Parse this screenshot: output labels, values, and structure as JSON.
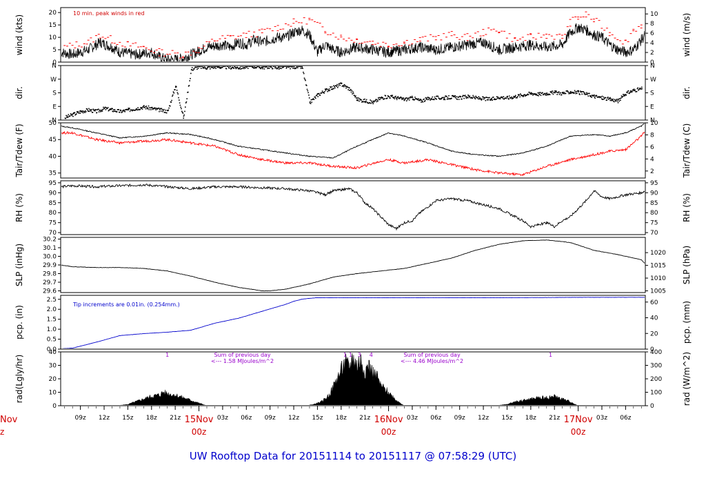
{
  "title": "UW Rooftop Data for 20151114  to  20151117 @ 07:58:29  (UTC)",
  "colors": {
    "data": "#000000",
    "peak": "#ff0000",
    "precip": "#0000cc",
    "purple": "#9900cc",
    "day_label": "#d00000"
  },
  "time_axis": {
    "tick_labels": [
      "09z",
      "12z",
      "15z",
      "18z",
      "21z",
      "03z",
      "06z",
      "09z",
      "12z",
      "15z",
      "18z",
      "21z",
      "03z",
      "06z",
      "09z",
      "12z",
      "15z",
      "18z",
      "21z",
      "03z",
      "06z"
    ],
    "tick_hours": [
      1,
      4,
      7,
      10,
      13,
      19,
      22,
      25,
      28,
      31,
      34,
      37,
      43,
      46,
      49,
      52,
      55,
      58,
      61,
      67,
      70
    ],
    "day_labels": [
      {
        "date": "15Nov",
        "hour": "00z",
        "at": 16
      },
      {
        "date": "16Nov",
        "hour": "00z",
        "at": 40
      },
      {
        "date": "17Nov",
        "hour": "00z",
        "at": 64
      }
    ],
    "edge_day": {
      "date": "Nov",
      "hour": "z"
    },
    "range_hours": [
      -1.5,
      72.5
    ]
  },
  "chart_data": [
    {
      "type": "line",
      "panel": "wind",
      "ylabel": "wind (kts)",
      "ylabel_right": "wind (m/s)",
      "ylim": [
        0,
        22
      ],
      "yticks": [
        0,
        5,
        10,
        15,
        20
      ],
      "yticks_right": [
        0,
        2,
        4,
        6,
        8,
        10
      ],
      "annotation": "10 min. peak winds in red",
      "series": [
        {
          "x": [
            -1.5,
            0,
            2,
            3.5,
            5,
            6,
            8,
            10,
            11,
            12,
            13,
            14,
            15,
            17,
            19,
            20,
            21,
            22,
            23,
            24,
            25,
            26,
            27,
            28,
            29,
            30,
            31,
            32,
            33,
            34,
            35,
            36,
            38,
            40,
            42,
            44,
            46,
            48,
            50,
            52,
            54,
            56,
            58,
            60,
            62,
            63,
            64,
            65,
            66,
            67,
            68,
            69,
            70,
            71,
            72,
            72.5
          ],
          "values": [
            4,
            3,
            5,
            8,
            6,
            4,
            3,
            4,
            2,
            1,
            1,
            1.5,
            3,
            6,
            7,
            6,
            8,
            7,
            9,
            8,
            9,
            10,
            10,
            12,
            13,
            11,
            4,
            7,
            5,
            4,
            5,
            6,
            5,
            4,
            5,
            6,
            5,
            6,
            7,
            8,
            5,
            6,
            7,
            6,
            7,
            12,
            14,
            13,
            11,
            10,
            7,
            5,
            4,
            5,
            9,
            11
          ]
        },
        {
          "x": [
            -1,
            0.5,
            2,
            3.5,
            5,
            7,
            9,
            11,
            14,
            16,
            18,
            20,
            22,
            24,
            26,
            28,
            30,
            32,
            34,
            36,
            38,
            40,
            42,
            44,
            46,
            48,
            50,
            52,
            54,
            56,
            58,
            60,
            62,
            63,
            64,
            65,
            66,
            68,
            70,
            71,
            72
          ],
          "values": [
            6,
            7,
            8,
            11,
            9,
            7,
            6,
            4,
            3,
            5,
            9,
            10,
            11,
            12,
            14,
            16,
            17,
            13,
            10,
            9,
            8,
            7,
            8,
            9,
            10,
            11,
            10,
            12,
            13,
            9,
            10,
            11,
            10,
            16,
            18,
            19,
            17,
            12,
            8,
            13,
            15
          ]
        }
      ]
    },
    {
      "type": "scatter",
      "panel": "dir",
      "ylabel": "dir.",
      "ylabel_right": "dir.",
      "ylim": [
        0,
        360
      ],
      "ytick_labels": [
        "N",
        "E",
        "S",
        "W",
        "N"
      ],
      "ytick_values": [
        0,
        90,
        180,
        270,
        360
      ],
      "series": [
        {
          "x": [
            -1,
            0,
            1,
            2,
            3,
            4,
            5,
            6,
            7,
            8,
            9,
            10,
            11,
            12,
            13,
            14,
            15,
            16,
            17,
            18,
            19,
            20,
            21,
            22,
            23,
            24,
            25,
            26,
            27,
            28,
            29,
            30,
            31,
            32,
            33,
            34,
            35,
            36,
            37,
            38,
            39,
            40,
            41,
            42,
            43,
            44,
            45,
            46,
            47,
            48,
            49,
            50,
            51,
            52,
            53,
            54,
            55,
            56,
            57,
            58,
            59,
            60,
            61,
            62,
            63,
            64,
            65,
            66,
            67,
            68,
            69,
            70,
            71,
            72
          ],
          "values": [
            20,
            40,
            60,
            70,
            60,
            80,
            70,
            60,
            70,
            80,
            90,
            80,
            70,
            60,
            230,
            20,
            340,
            355,
            350,
            356,
            354,
            352,
            350,
            355,
            357,
            352,
            356,
            350,
            354,
            355,
            353,
            120,
            170,
            200,
            220,
            240,
            210,
            140,
            130,
            120,
            150,
            160,
            150,
            140,
            150,
            130,
            145,
            150,
            150,
            155,
            150,
            160,
            150,
            145,
            140,
            155,
            150,
            160,
            170,
            180,
            175,
            180,
            185,
            180,
            190,
            185,
            175,
            160,
            150,
            140,
            130,
            180,
            200,
            210
          ]
        }
      ]
    },
    {
      "type": "line",
      "panel": "temp",
      "ylabel": "Tair/Tdew (F)",
      "ylabel_right": "Tair/Tdew (C)",
      "ylim": [
        33.5,
        50
      ],
      "yticks": [
        35,
        40,
        45,
        50
      ],
      "yticks_right": [
        2,
        4,
        6,
        8,
        10
      ],
      "series": [
        {
          "x": [
            -1.5,
            0,
            3,
            6,
            9,
            12,
            15,
            18,
            21,
            24,
            27,
            30,
            33,
            36,
            39,
            40,
            42,
            45,
            48,
            51,
            54,
            57,
            60,
            63,
            66,
            68,
            70,
            72,
            72.5
          ],
          "values": [
            49,
            48.5,
            47,
            45.5,
            46,
            47,
            46.5,
            45,
            43,
            42,
            41,
            40,
            39.5,
            43,
            46,
            47,
            46,
            44,
            41.5,
            40.5,
            40,
            41,
            43,
            46,
            46.5,
            46,
            47,
            49,
            50
          ]
        },
        {
          "x": [
            -1.5,
            0,
            3,
            6,
            9,
            12,
            15,
            18,
            21,
            24,
            27,
            30,
            33,
            36,
            39,
            40,
            42,
            45,
            48,
            51,
            54,
            57,
            60,
            63,
            66,
            68,
            70,
            72,
            72.5
          ],
          "values": [
            47,
            47,
            45,
            44,
            44.5,
            45,
            44,
            43,
            40.5,
            39,
            38,
            38,
            37,
            36.5,
            38.5,
            39,
            38,
            39,
            37.5,
            36,
            35,
            34.5,
            37,
            39,
            40.5,
            41.5,
            42,
            46,
            47.5
          ]
        }
      ]
    },
    {
      "type": "line",
      "panel": "rh",
      "ylabel": "RH (%)",
      "ylabel_right": "RH (%)",
      "ylim": [
        69,
        96
      ],
      "yticks": [
        70,
        75,
        80,
        85,
        90,
        95
      ],
      "yticks_right": [
        70,
        75,
        80,
        85,
        90,
        95
      ],
      "series": [
        {
          "x": [
            -1.5,
            0,
            3,
            6,
            9,
            12,
            15,
            18,
            21,
            24,
            27,
            30,
            32,
            33,
            35,
            36,
            37,
            38,
            39,
            40,
            41,
            42,
            43,
            44,
            46,
            48,
            50,
            52,
            54,
            56,
            57,
            58,
            59,
            60,
            61,
            62,
            63,
            64,
            65,
            66,
            67,
            68,
            70,
            72,
            72.5
          ],
          "values": [
            93,
            93.5,
            93,
            93.5,
            94,
            93,
            92,
            93,
            93,
            92.5,
            92,
            91,
            89,
            91,
            92,
            90,
            85,
            82,
            78,
            74,
            72,
            75,
            76,
            80,
            86,
            87,
            86,
            84,
            82,
            78,
            76,
            73,
            74,
            75,
            73,
            76,
            78,
            82,
            86,
            91,
            88,
            87,
            89,
            90,
            91
          ]
        }
      ]
    },
    {
      "type": "line",
      "panel": "slp",
      "ylabel": "SLP (inHg)",
      "ylabel_right": "SLP (hPa)",
      "ylim": [
        29.58,
        30.22
      ],
      "yticks": [
        29.6,
        29.7,
        29.8,
        29.9,
        30.0,
        30.1,
        30.2
      ],
      "yticks_right": [
        1005,
        1010,
        1015,
        1020
      ],
      "series": [
        {
          "x": [
            -1.5,
            0,
            3,
            6,
            9,
            12,
            15,
            18,
            21,
            24,
            25,
            27,
            30,
            33,
            36,
            39,
            42,
            45,
            48,
            51,
            54,
            57,
            60,
            63,
            66,
            69,
            72,
            72.5
          ],
          "values": [
            29.9,
            29.88,
            29.87,
            29.87,
            29.86,
            29.83,
            29.77,
            29.7,
            29.64,
            29.6,
            29.6,
            29.62,
            29.68,
            29.76,
            29.8,
            29.83,
            29.86,
            29.92,
            29.98,
            30.07,
            30.14,
            30.18,
            30.19,
            30.16,
            30.07,
            30.02,
            29.96,
            29.91
          ]
        }
      ]
    },
    {
      "type": "line",
      "panel": "pcp",
      "ylabel": "pcp. (in)",
      "ylabel_right": "pcp. (mm)",
      "ylim": [
        0,
        2.7
      ],
      "yticks": [
        0.0,
        0.5,
        1.0,
        1.5,
        2.0,
        2.5
      ],
      "yticks_right": [
        0,
        20,
        40,
        60
      ],
      "annotation": "Tip increments are 0.01in. (0.254mm.)",
      "series": [
        {
          "x": [
            -1.5,
            0,
            3,
            6,
            9,
            12,
            15,
            18,
            21,
            24,
            27,
            28,
            29,
            30,
            31,
            32,
            36,
            40,
            48,
            56,
            64,
            72,
            72.5
          ],
          "values": [
            0.02,
            0.05,
            0.35,
            0.68,
            0.78,
            0.85,
            0.95,
            1.3,
            1.55,
            1.9,
            2.25,
            2.4,
            2.5,
            2.55,
            2.58,
            2.58,
            2.58,
            2.58,
            2.58,
            2.58,
            2.6,
            2.6,
            2.6
          ]
        }
      ]
    },
    {
      "type": "area",
      "panel": "rad",
      "ylabel": "rad(Lgly/hr)",
      "ylabel_right": "rad (W/m^2)",
      "ylim": [
        0,
        40
      ],
      "yticks": [
        0,
        10,
        20,
        30,
        40
      ],
      "yticks_right": [
        0,
        100,
        200,
        300,
        400
      ],
      "annotations": [
        {
          "text": "Sum of previous day",
          "x": 21.5
        },
        {
          "text": "<--- 1.58 MJoules/m^2",
          "x": 21.5
        },
        {
          "text": "Sum of previous day",
          "x": 45.5
        },
        {
          "text": "<--- 4.46 MJoules/m^2",
          "x": 45.5
        }
      ],
      "markers": [
        {
          "label": "1",
          "x": 12
        },
        {
          "label": "1",
          "x": 34.5
        },
        {
          "label": "1",
          "x": 35.2
        },
        {
          "label": "3",
          "x": 36.3
        },
        {
          "label": "4",
          "x": 37.8
        },
        {
          "label": "1",
          "x": 60.5
        }
      ],
      "series": [
        {
          "x": [
            5.5,
            7,
            8,
            9,
            10,
            11,
            11.5,
            12,
            13,
            14,
            15,
            16,
            17,
            29.5,
            30.5,
            31.5,
            32.5,
            33.5,
            34.5,
            35,
            35.5,
            36,
            36.5,
            37,
            37.5,
            38,
            38.5,
            39,
            40,
            41,
            42,
            53.5,
            55,
            56,
            57,
            58,
            59,
            60,
            61,
            62,
            63,
            64
          ],
          "values": [
            0,
            1,
            3,
            5,
            7,
            8,
            10,
            9,
            8,
            6,
            4,
            2,
            0,
            0,
            1,
            3,
            8,
            20,
            32,
            28,
            36,
            30,
            34,
            26,
            30,
            24,
            22,
            15,
            10,
            4,
            0,
            0,
            1,
            3,
            4,
            5,
            6,
            6,
            7,
            5,
            3,
            0
          ]
        }
      ]
    }
  ]
}
